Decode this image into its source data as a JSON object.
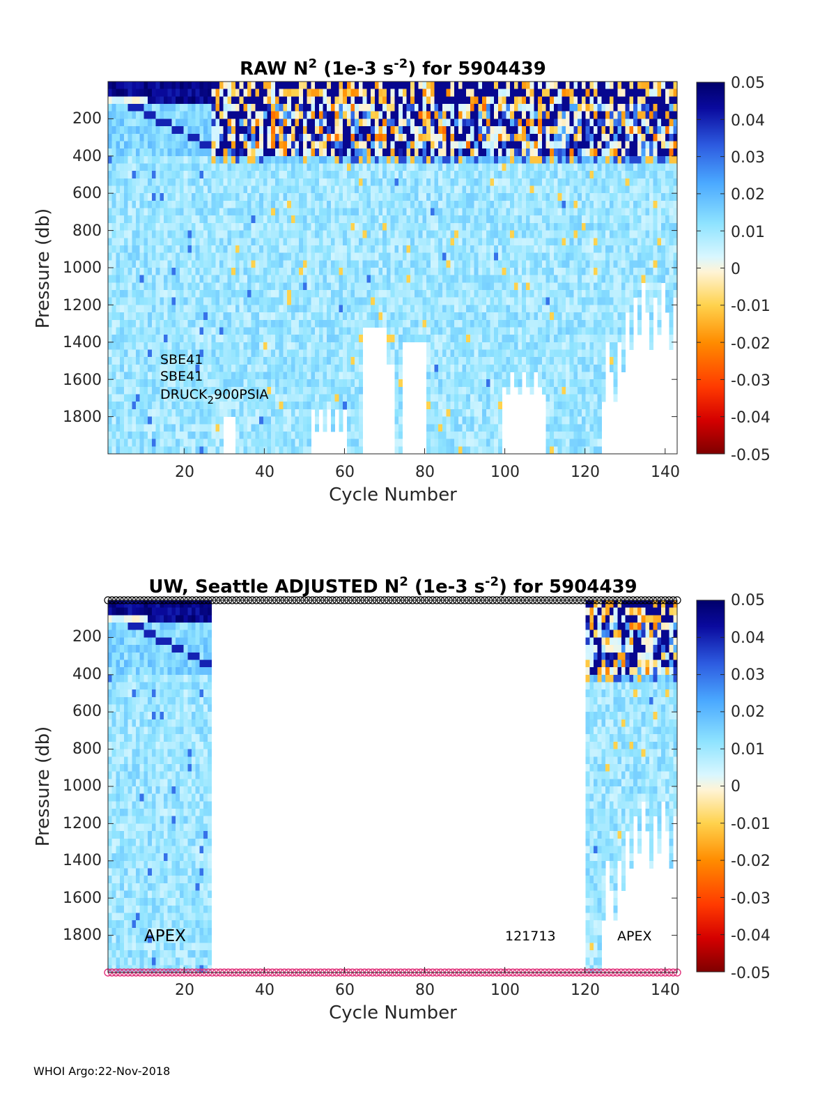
{
  "footer": "WHOI Argo:22-Nov-2018",
  "colorbar": {
    "ticks": [
      "0.05",
      "0.04",
      "0.03",
      "0.02",
      "0.01",
      "0",
      "-0.01",
      "-0.02",
      "-0.03",
      "-0.04",
      "-0.05"
    ],
    "range": [
      -0.05,
      0.05
    ],
    "colors": [
      "#7f0000",
      "#d40000",
      "#ff3a00",
      "#ff8c00",
      "#ffd24d",
      "#fff4d6",
      "#d9f7ff",
      "#8ee3ff",
      "#4aa8ff",
      "#2d5be0",
      "#0a0a9e",
      "#00006a"
    ]
  },
  "chart_data": [
    {
      "type": "heatmap",
      "title_prefix": "RAW N",
      "title_sup1": "2",
      "title_mid": " (1e-3 s",
      "title_sup2": "-2",
      "title_suffix": ") for 5904439",
      "xlabel": "Cycle Number",
      "ylabel": "Pressure (db)",
      "xlim": [
        1,
        143
      ],
      "ylim": [
        2000,
        0
      ],
      "xticks": [
        "20",
        "40",
        "60",
        "80",
        "100",
        "120",
        "140"
      ],
      "yticks": [
        "200",
        "400",
        "600",
        "800",
        "1000",
        "1200",
        "1400",
        "1600",
        "1800"
      ],
      "cycles_range": [
        1,
        143
      ],
      "annotations": [
        "SBE41",
        "SBE41",
        "DRUCK",
        "2",
        "900PSIA"
      ]
    },
    {
      "type": "heatmap",
      "title_prefix": "UW, Seattle  ADJUSTED N",
      "title_sup1": "2",
      "title_mid": " (1e-3 s",
      "title_sup2": "-2",
      "title_suffix": ") for 5904439",
      "xlabel": "Cycle Number",
      "ylabel": "Pressure (db)",
      "xlim": [
        1,
        143
      ],
      "ylim": [
        2000,
        0
      ],
      "xticks": [
        "20",
        "40",
        "60",
        "80",
        "100",
        "120",
        "140"
      ],
      "yticks": [
        "200",
        "400",
        "600",
        "800",
        "1000",
        "1200",
        "1400",
        "1600",
        "1800"
      ],
      "adjusted_cycles": [
        [
          1,
          26
        ],
        [
          121,
          143
        ]
      ],
      "annotations": [
        "APEX",
        "121713",
        "APEX"
      ]
    }
  ]
}
